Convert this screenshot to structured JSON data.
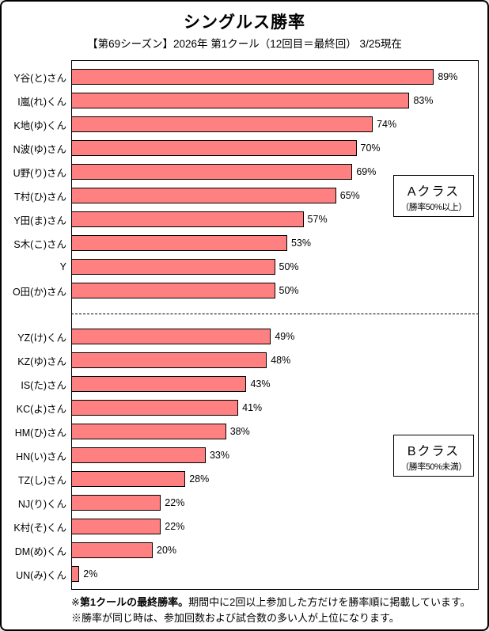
{
  "title": "シングルス勝率",
  "subtitle": "【第69シーズン】2026年 第1クール（12回目＝最終回） 3/25現在",
  "colors": {
    "bar_fill": "#FF8080",
    "bar_border": "#000000",
    "background": "#FFFFFF",
    "text": "#000000"
  },
  "chart_data": {
    "type": "bar",
    "orientation": "horizontal",
    "title": "シングルス勝率",
    "subtitle": "【第69シーズン】2026年 第1クール（12回目＝最終回） 3/25現在",
    "xlim": [
      0,
      100
    ],
    "unit": "%",
    "grid": false,
    "value_labels": true,
    "categories": [
      "Y谷(と)さん",
      "I嵐(れ)くん",
      "K地(ゆ)くん",
      "N波(ゆ)さん",
      "U野(り)さん",
      "T村(ひ)さん",
      "Y田(ま)さん",
      "S木(こ)さん",
      "Y",
      "O田(か)さん",
      "YZ(け)くん",
      "KZ(ゆ)さん",
      "IS(た)さん",
      "KC(よ)さん",
      "HM(ひ)さん",
      "HN(い)さん",
      "TZ(し)さん",
      "NJ(り)くん",
      "K村(そ)くん",
      "DM(め)くん",
      "UN(み)くん"
    ],
    "values": [
      89,
      83,
      74,
      70,
      69,
      65,
      57,
      53,
      50,
      50,
      49,
      48,
      43,
      41,
      38,
      33,
      28,
      22,
      22,
      20,
      2
    ],
    "separator_after_index": 9,
    "groups": [
      {
        "name": "Aクラス",
        "criteria": "（勝率50%以上）",
        "member_indices": [
          0,
          1,
          2,
          3,
          4,
          5,
          6,
          7,
          8,
          9
        ]
      },
      {
        "name": "Bクラス",
        "criteria": "（勝率50%未満）",
        "member_indices": [
          10,
          11,
          12,
          13,
          14,
          15,
          16,
          17,
          18,
          19,
          20
        ]
      }
    ]
  },
  "class_boxes": {
    "a": {
      "title": "Aクラス",
      "subtitle": "（勝率50%以上）"
    },
    "b": {
      "title": "Bクラス",
      "subtitle": "（勝率50%未満）"
    }
  },
  "footer": {
    "note1_prefix": "※",
    "note1_bold": "第1クールの最終勝率。",
    "note1_rest": "期間中に2回以上参加した方だけを勝率順に掲載しています。",
    "note2": "※勝率が同じ時は、参加回数および試合数の多い人が上位になります。"
  }
}
